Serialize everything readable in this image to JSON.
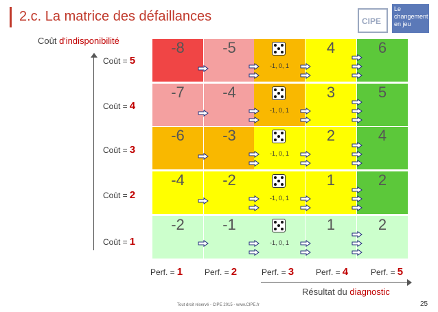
{
  "header": {
    "title": "2.c. La matrice des défaillances",
    "accent_color": "#c0392b"
  },
  "logo": {
    "brand": "CIPE",
    "tagline_1": "Le",
    "tagline_2": "changement",
    "tagline_3": "en jeu"
  },
  "y_axis": {
    "title_prefix": "Coût ",
    "title_highlight": "d'indisponibilité"
  },
  "x_axis": {
    "title_prefix": "Résultat du ",
    "title_highlight": "diagnostic"
  },
  "cost_labels": [
    {
      "prefix": "Coût =",
      "value": "5"
    },
    {
      "prefix": "Coût =",
      "value": "4"
    },
    {
      "prefix": "Coût =",
      "value": "3"
    },
    {
      "prefix": "Coût =",
      "value": "2"
    },
    {
      "prefix": "Coût =",
      "value": "1"
    }
  ],
  "perf_labels": [
    {
      "prefix": "Perf. =",
      "value": "1"
    },
    {
      "prefix": "Perf. =",
      "value": "2"
    },
    {
      "prefix": "Perf. =",
      "value": "3"
    },
    {
      "prefix": "Perf. =",
      "value": "4"
    },
    {
      "prefix": "Perf. =",
      "value": "5"
    }
  ],
  "dice_label": "-1, 0, 1",
  "matrix": [
    {
      "row_color": "",
      "cells": [
        {
          "text": "-8",
          "color": "#f04545"
        },
        {
          "text": "-5",
          "color": "#f4a0a0"
        },
        {
          "text": "",
          "color": "#f9b800",
          "dice": true
        },
        {
          "text": "4",
          "color": "#ffff00"
        },
        {
          "text": "6",
          "color": "#5cc83a"
        }
      ]
    },
    {
      "row_color": "#f4a0a0",
      "cells": [
        {
          "text": "-7",
          "color": "#f4a0a0"
        },
        {
          "text": "-4",
          "color": "#f4a0a0"
        },
        {
          "text": "",
          "color": "#f9b800",
          "dice": true
        },
        {
          "text": "3",
          "color": "#ffff00"
        },
        {
          "text": "5",
          "color": "#5cc83a"
        }
      ]
    },
    {
      "row_color": "#f9b800",
      "cells": [
        {
          "text": "-6",
          "color": "#f9b800"
        },
        {
          "text": "-3",
          "color": "#f9b800"
        },
        {
          "text": "",
          "color": "#ffff00",
          "dice": true
        },
        {
          "text": "2",
          "color": "#ffff00"
        },
        {
          "text": "4",
          "color": "#5cc83a"
        }
      ]
    },
    {
      "row_color": "#ffff00",
      "cells": [
        {
          "text": "-4",
          "color": "#ffff00"
        },
        {
          "text": "-2",
          "color": "#ffff00"
        },
        {
          "text": "",
          "color": "#ffff00",
          "dice": true
        },
        {
          "text": "1",
          "color": "#ffff00"
        },
        {
          "text": "2",
          "color": "#5cc83a"
        }
      ]
    },
    {
      "row_color": "#ccffcc",
      "cells": [
        {
          "text": "-2",
          "color": "#ccffcc"
        },
        {
          "text": "-1",
          "color": "#ccffcc"
        },
        {
          "text": "",
          "color": "#ccffcc",
          "dice": true
        },
        {
          "text": "1",
          "color": "#ccffcc"
        },
        {
          "text": "2",
          "color": "#ccffcc"
        }
      ]
    }
  ],
  "arrow_icon": "right-arrow-icon",
  "footer": "Tout droit réservé - CIPE 2015 - www.CIPE.fr",
  "page_number": "25"
}
